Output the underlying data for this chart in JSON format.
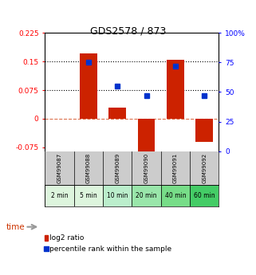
{
  "title": "GDS2578 / 873",
  "categories": [
    "GSM99087",
    "GSM99088",
    "GSM99089",
    "GSM99090",
    "GSM99091",
    "GSM99092"
  ],
  "time_labels": [
    "2 min",
    "5 min",
    "10 min",
    "20 min",
    "40 min",
    "60 min"
  ],
  "log2_values": [
    0.0,
    0.172,
    0.03,
    -0.09,
    0.155,
    -0.06
  ],
  "percentile_values": [
    null,
    75,
    55,
    47,
    72,
    47
  ],
  "bar_color": "#cc2200",
  "dot_color": "#0033cc",
  "ylim_left": [
    -0.085,
    0.225
  ],
  "ylim_right": [
    0,
    100
  ],
  "yticks_left": [
    -0.075,
    0,
    0.075,
    0.15,
    0.225
  ],
  "yticks_right": [
    0,
    25,
    50,
    75,
    100
  ],
  "hline1": 0.15,
  "hline2": 0.075,
  "hline_zero": 0.0,
  "bg_color": "#ffffff",
  "time_colors": [
    "#ddf5dd",
    "#ddf5dd",
    "#bbeecc",
    "#99e6aa",
    "#77dd88",
    "#44cc66"
  ],
  "gray_bg": "#cccccc",
  "legend_log2": "log2 ratio",
  "legend_pct": "percentile rank within the sample",
  "bar_width": 0.6
}
